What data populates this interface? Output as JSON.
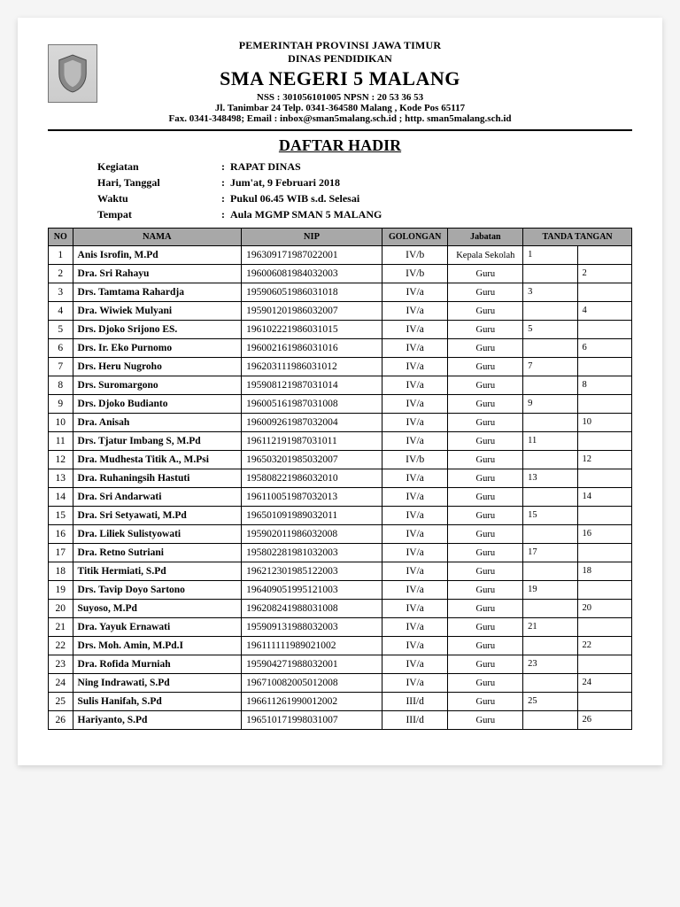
{
  "header": {
    "line1": "PEMERINTAH PROVINSI JAWA TIMUR",
    "line2": "DINAS PENDIDIKAN",
    "school": "SMA NEGERI 5 MALANG",
    "nss": "NSS : 301056101005   NPSN : 20 53 36 53",
    "address": "Jl. Tanimbar 24 Telp. 0341-364580 Malang , Kode Pos 65117",
    "fax": "Fax. 0341-348498; Email : inbox@sman5malang.sch.id ; http. sman5malang.sch.id"
  },
  "title": "DAFTAR HADIR",
  "meta": {
    "rows": [
      {
        "label": "Kegiatan",
        "value": "RAPAT DINAS"
      },
      {
        "label": "Hari, Tanggal",
        "value": "Jum'at, 9 Februari 2018"
      },
      {
        "label": "Waktu",
        "value": "Pukul 06.45 WIB s.d. Selesai"
      },
      {
        "label": "Tempat",
        "value": "Aula MGMP SMAN 5 MALANG"
      }
    ]
  },
  "table": {
    "columns": [
      "NO",
      "NAMA",
      "NIP",
      "GOLONGAN",
      "Jabatan",
      "TANDA TANGAN"
    ],
    "rows": [
      {
        "no": 1,
        "nama": "Anis Isrofin, M.Pd",
        "nip": "196309171987022001",
        "gol": "IV/b",
        "jab": "Kepala Sekolah",
        "sigcol": "left"
      },
      {
        "no": 2,
        "nama": "Dra. Sri Rahayu",
        "nip": "196006081984032003",
        "gol": "IV/b",
        "jab": "Guru",
        "sigcol": "right"
      },
      {
        "no": 3,
        "nama": "Drs. Tamtama Rahardja",
        "nip": "195906051986031018",
        "gol": "IV/a",
        "jab": "Guru",
        "sigcol": "left"
      },
      {
        "no": 4,
        "nama": "Dra. Wiwiek Mulyani",
        "nip": "195901201986032007",
        "gol": "IV/a",
        "jab": "Guru",
        "sigcol": "right"
      },
      {
        "no": 5,
        "nama": "Drs. Djoko Srijono ES.",
        "nip": "196102221986031015",
        "gol": "IV/a",
        "jab": "Guru",
        "sigcol": "left"
      },
      {
        "no": 6,
        "nama": "Drs. Ir. Eko Purnomo",
        "nip": "196002161986031016",
        "gol": "IV/a",
        "jab": "Guru",
        "sigcol": "right"
      },
      {
        "no": 7,
        "nama": "Drs. Heru Nugroho",
        "nip": "196203111986031012",
        "gol": "IV/a",
        "jab": "Guru",
        "sigcol": "left"
      },
      {
        "no": 8,
        "nama": "Drs. Suromargono",
        "nip": "195908121987031014",
        "gol": "IV/a",
        "jab": "Guru",
        "sigcol": "right"
      },
      {
        "no": 9,
        "nama": "Drs. Djoko Budianto",
        "nip": "196005161987031008",
        "gol": "IV/a",
        "jab": "Guru",
        "sigcol": "left"
      },
      {
        "no": 10,
        "nama": "Dra. Anisah",
        "nip": "196009261987032004",
        "gol": "IV/a",
        "jab": "Guru",
        "sigcol": "right"
      },
      {
        "no": 11,
        "nama": "Drs. Tjatur Imbang S, M.Pd",
        "nip": "196112191987031011",
        "gol": "IV/a",
        "jab": "Guru",
        "sigcol": "left"
      },
      {
        "no": 12,
        "nama": "Dra. Mudhesta Titik A., M.Psi",
        "nip": "196503201985032007",
        "gol": "IV/b",
        "jab": "Guru",
        "sigcol": "right"
      },
      {
        "no": 13,
        "nama": "Dra. Ruhaningsih Hastuti",
        "nip": "195808221986032010",
        "gol": "IV/a",
        "jab": "Guru",
        "sigcol": "left"
      },
      {
        "no": 14,
        "nama": "Dra. Sri Andarwati",
        "nip": "196110051987032013",
        "gol": "IV/a",
        "jab": "Guru",
        "sigcol": "right"
      },
      {
        "no": 15,
        "nama": "Dra. Sri Setyawati, M.Pd",
        "nip": "196501091989032011",
        "gol": "IV/a",
        "jab": "Guru",
        "sigcol": "left"
      },
      {
        "no": 16,
        "nama": "Dra. Liliek Sulistyowati",
        "nip": "195902011986032008",
        "gol": "IV/a",
        "jab": "Guru",
        "sigcol": "right"
      },
      {
        "no": 17,
        "nama": "Dra. Retno Sutriani",
        "nip": "195802281981032003",
        "gol": "IV/a",
        "jab": "Guru",
        "sigcol": "left"
      },
      {
        "no": 18,
        "nama": "Titik Hermiati, S.Pd",
        "nip": "196212301985122003",
        "gol": "IV/a",
        "jab": "Guru",
        "sigcol": "right"
      },
      {
        "no": 19,
        "nama": "Drs. Tavip Doyo Sartono",
        "nip": "196409051995121003",
        "gol": "IV/a",
        "jab": "Guru",
        "sigcol": "left"
      },
      {
        "no": 20,
        "nama": "Suyoso, M.Pd",
        "nip": "196208241988031008",
        "gol": "IV/a",
        "jab": "Guru",
        "sigcol": "right"
      },
      {
        "no": 21,
        "nama": "Dra. Yayuk Ernawati",
        "nip": "195909131988032003",
        "gol": "IV/a",
        "jab": "Guru",
        "sigcol": "left"
      },
      {
        "no": 22,
        "nama": "Drs. Moh. Amin, M.Pd.I",
        "nip": "196111111989021002",
        "gol": "IV/a",
        "jab": "Guru",
        "sigcol": "right"
      },
      {
        "no": 23,
        "nama": "Dra. Rofida Murniah",
        "nip": "195904271988032001",
        "gol": "IV/a",
        "jab": "Guru",
        "sigcol": "left"
      },
      {
        "no": 24,
        "nama": "Ning Indrawati, S.Pd",
        "nip": "196710082005012008",
        "gol": "IV/a",
        "jab": "Guru",
        "sigcol": "right"
      },
      {
        "no": 25,
        "nama": "Sulis Hanifah, S.Pd",
        "nip": "196611261990012002",
        "gol": "III/d",
        "jab": "Guru",
        "sigcol": "left"
      },
      {
        "no": 26,
        "nama": "Hariyanto, S.Pd",
        "nip": "196510171998031007",
        "gol": "III/d",
        "jab": "Guru",
        "sigcol": "right"
      }
    ]
  },
  "colors": {
    "header_bg": "#a8a8a8",
    "border": "#000000",
    "page_bg": "#ffffff"
  }
}
